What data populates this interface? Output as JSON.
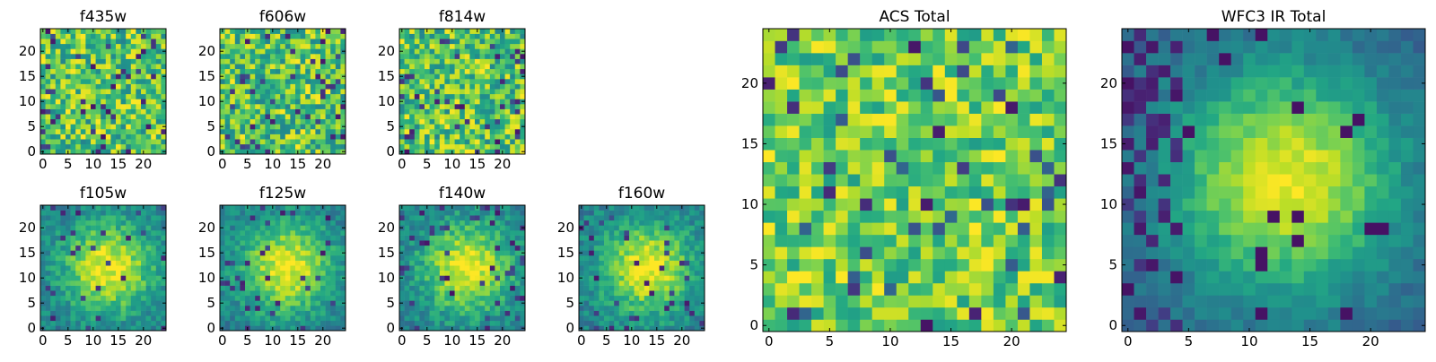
{
  "chart_data": [
    {
      "type": "heatmap",
      "title": "f435w",
      "xticks": [
        0,
        5,
        10,
        15,
        20
      ],
      "yticks": [
        0,
        5,
        10,
        15,
        20
      ],
      "xlim": [
        0,
        24
      ],
      "ylim": [
        0,
        24
      ],
      "grid_size": 25,
      "colormap": "viridis",
      "pattern": "noise",
      "seed": 11
    },
    {
      "type": "heatmap",
      "title": "f606w",
      "xticks": [
        0,
        5,
        10,
        15,
        20
      ],
      "yticks": [
        0,
        5,
        10,
        15,
        20
      ],
      "xlim": [
        0,
        24
      ],
      "ylim": [
        0,
        24
      ],
      "grid_size": 25,
      "colormap": "viridis",
      "pattern": "noise",
      "seed": 23
    },
    {
      "type": "heatmap",
      "title": "f814w",
      "xticks": [
        0,
        5,
        10,
        15,
        20
      ],
      "yticks": [
        0,
        5,
        10,
        15,
        20
      ],
      "xlim": [
        0,
        24
      ],
      "ylim": [
        0,
        24
      ],
      "grid_size": 25,
      "colormap": "viridis",
      "pattern": "noise",
      "seed": 37
    },
    {
      "type": "heatmap",
      "title": "f105w",
      "xticks": [
        0,
        5,
        10,
        15,
        20
      ],
      "yticks": [
        0,
        5,
        10,
        15,
        20
      ],
      "xlim": [
        0,
        24
      ],
      "ylim": [
        0,
        24
      ],
      "grid_size": 25,
      "colormap": "viridis",
      "pattern": "blob",
      "seed": 41
    },
    {
      "type": "heatmap",
      "title": "f125w",
      "xticks": [
        0,
        5,
        10,
        15,
        20
      ],
      "yticks": [
        0,
        5,
        10,
        15,
        20
      ],
      "xlim": [
        0,
        24
      ],
      "ylim": [
        0,
        24
      ],
      "grid_size": 25,
      "colormap": "viridis",
      "pattern": "blob",
      "seed": 53
    },
    {
      "type": "heatmap",
      "title": "f140w",
      "xticks": [
        0,
        5,
        10,
        15,
        20
      ],
      "yticks": [
        0,
        5,
        10,
        15,
        20
      ],
      "xlim": [
        0,
        24
      ],
      "ylim": [
        0,
        24
      ],
      "grid_size": 25,
      "colormap": "viridis",
      "pattern": "blob",
      "seed": 67
    },
    {
      "type": "heatmap",
      "title": "f160w",
      "xticks": [
        0,
        5,
        10,
        15,
        20
      ],
      "yticks": [
        0,
        5,
        10,
        15,
        20
      ],
      "xlim": [
        0,
        24
      ],
      "ylim": [
        0,
        24
      ],
      "grid_size": 25,
      "colormap": "viridis",
      "pattern": "blob",
      "seed": 79
    },
    {
      "type": "heatmap",
      "title": "ACS Total",
      "xticks": [
        0,
        5,
        10,
        15,
        20
      ],
      "yticks": [
        0,
        5,
        10,
        15,
        20
      ],
      "xlim": [
        0,
        24
      ],
      "ylim": [
        0,
        24
      ],
      "grid_size": 25,
      "colormap": "viridis",
      "pattern": "noise-bright",
      "seed": 97
    },
    {
      "type": "heatmap",
      "title": "WFC3 IR Total",
      "xticks": [
        0,
        5,
        10,
        15,
        20
      ],
      "yticks": [
        0,
        5,
        10,
        15,
        20
      ],
      "xlim": [
        0,
        24
      ],
      "ylim": [
        0,
        24
      ],
      "grid_size": 25,
      "colormap": "viridis",
      "pattern": "blob-strong",
      "seed": 101
    }
  ]
}
